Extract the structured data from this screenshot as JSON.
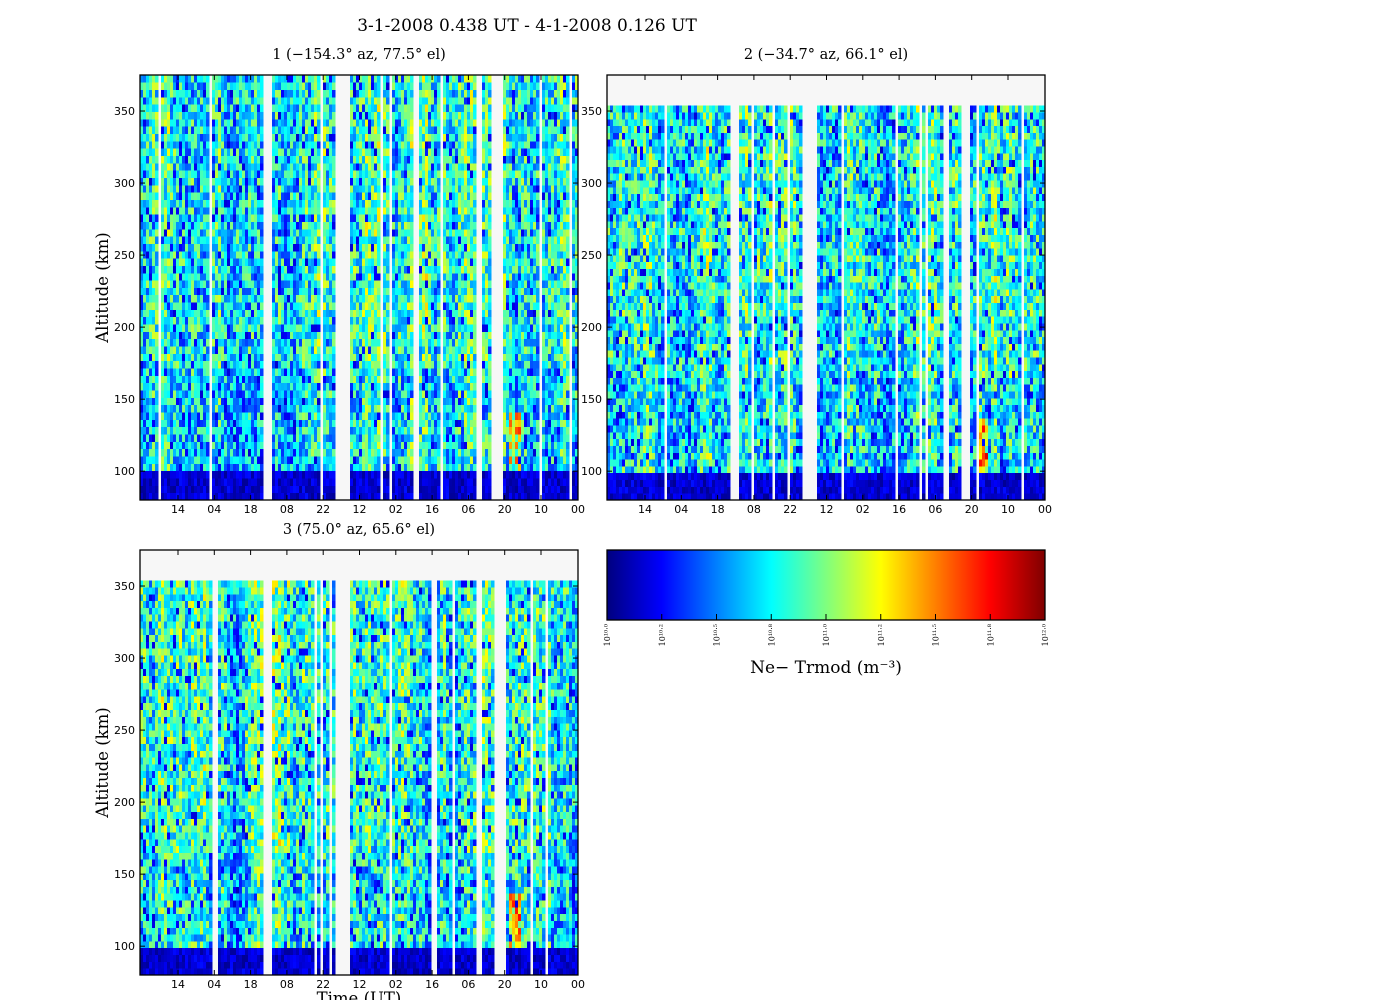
{
  "figure": {
    "title": "3-1-2008 0.438 UT - 4-1-2008 0.126 UT"
  },
  "colormap": {
    "name": "jet",
    "stops": [
      "#00007f",
      "#0000ff",
      "#007fff",
      "#00ffff",
      "#7fff7f",
      "#ffff00",
      "#ff7f00",
      "#ff0000",
      "#7f0000"
    ],
    "nodata_color": "#f7f7f7"
  },
  "chart_data": [
    {
      "type": "heatmap",
      "title": "1 (−154.3° az, 77.5° el)",
      "ylabel": "Altitude (km)",
      "xlabel": "",
      "ylim": [
        80,
        375
      ],
      "yticks": [
        100,
        150,
        200,
        250,
        300,
        350
      ],
      "xtick_labels": [
        "14",
        "04",
        "18",
        "08",
        "22",
        "12",
        "02",
        "16",
        "06",
        "20",
        "10",
        "00"
      ],
      "data_top": 375,
      "seed": 11
    },
    {
      "type": "heatmap",
      "title": "2 (−34.7° az, 66.1° el)",
      "ylabel": "",
      "xlabel": "",
      "ylim": [
        80,
        375
      ],
      "yticks": [
        100,
        150,
        200,
        250,
        300,
        350
      ],
      "xtick_labels": [
        "14",
        "04",
        "18",
        "08",
        "22",
        "12",
        "02",
        "16",
        "06",
        "20",
        "10",
        "00"
      ],
      "data_top": 354,
      "seed": 23
    },
    {
      "type": "heatmap",
      "title": "3 (75.0° az, 65.6° el)",
      "ylabel": "Altitude (km)",
      "xlabel": "Time (UT)",
      "ylim": [
        80,
        375
      ],
      "yticks": [
        100,
        150,
        200,
        250,
        300,
        350
      ],
      "xtick_labels": [
        "14",
        "04",
        "18",
        "08",
        "22",
        "12",
        "02",
        "16",
        "06",
        "20",
        "10",
        "00"
      ],
      "data_top": 354,
      "seed": 37
    }
  ],
  "colorbar": {
    "label": "Ne− Trmod (m⁻³)",
    "tick_labels": [
      "10¹⁰·⁰",
      "10¹⁰·²",
      "10¹⁰·⁵",
      "10¹⁰·⁸",
      "10¹¹·⁰",
      "10¹¹·²",
      "10¹¹·⁵",
      "10¹¹·⁸",
      "10¹²·⁰"
    ]
  }
}
